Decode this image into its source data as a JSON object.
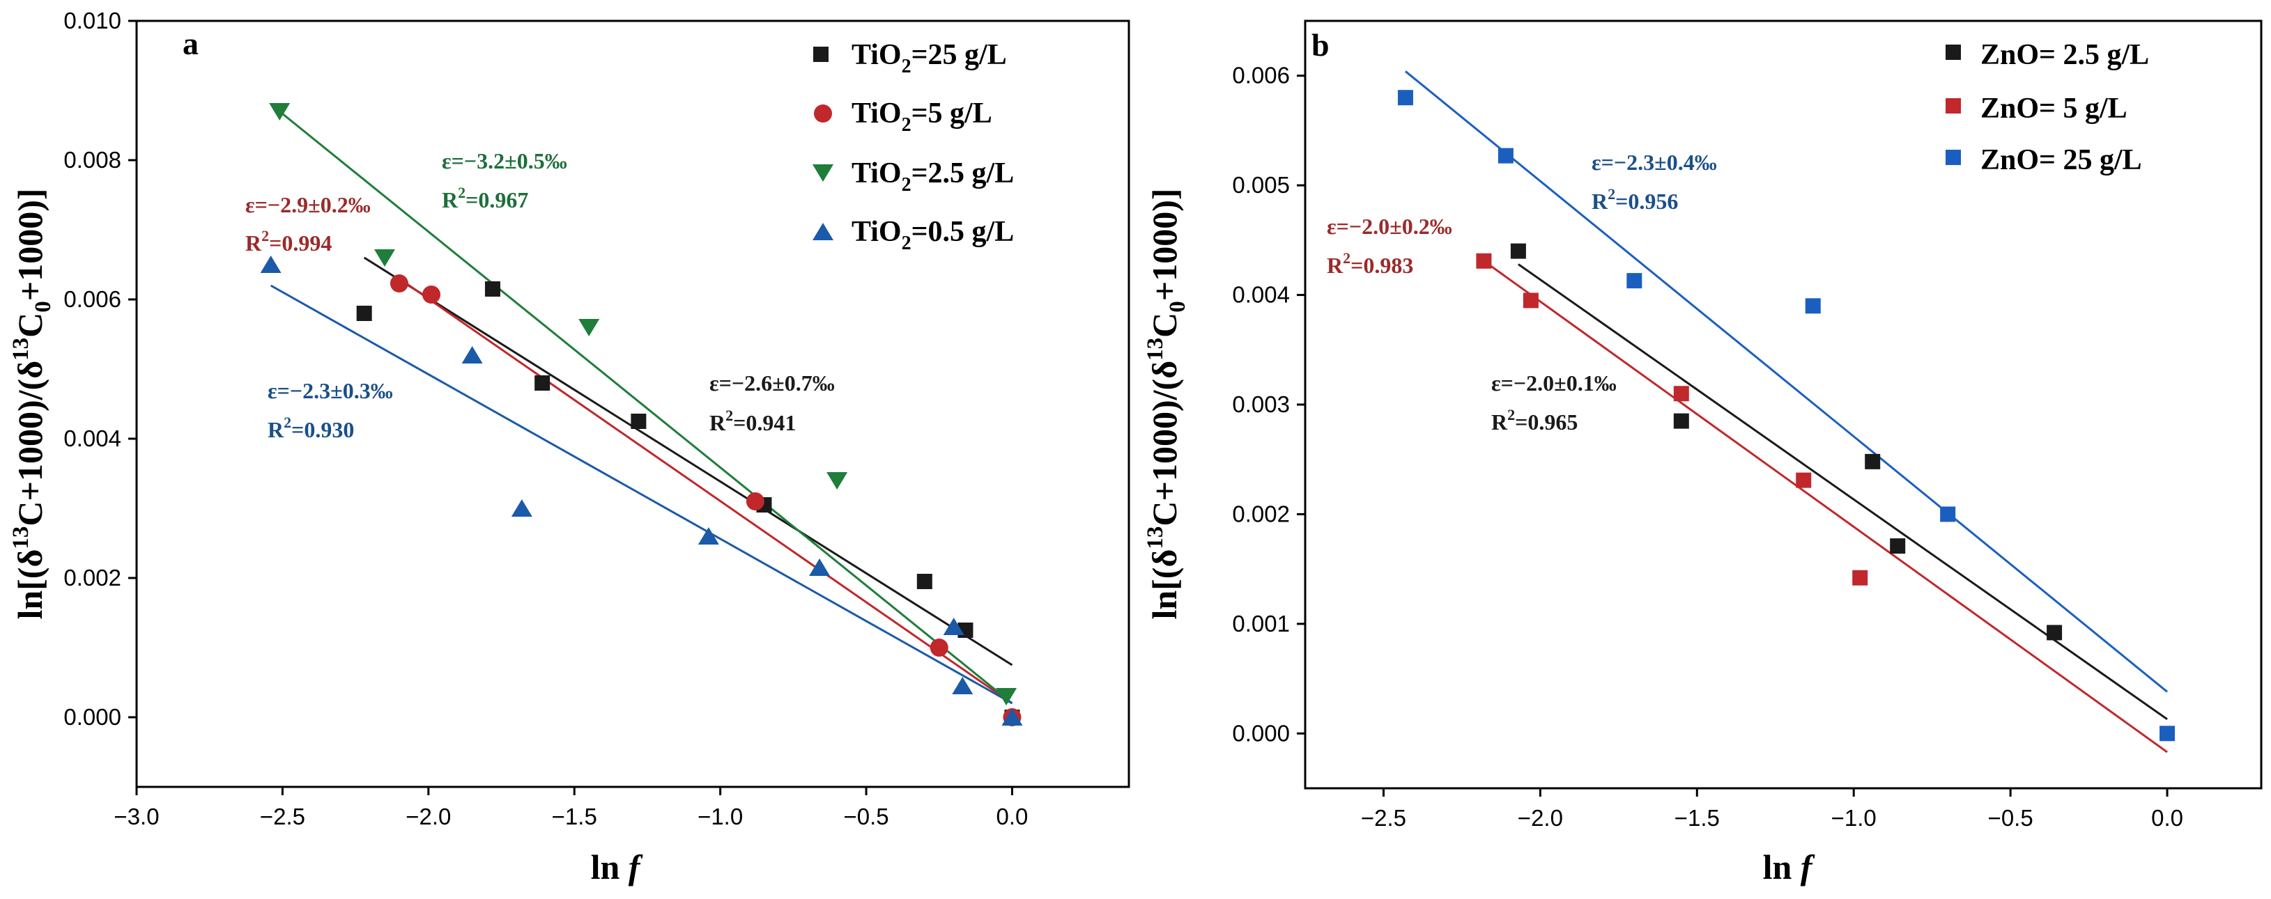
{
  "chart_data": [
    {
      "type": "scatter",
      "panel_label": "a",
      "xlabel": "ln f",
      "xlabel_main": "ln",
      "xlabel_italic": "f",
      "ylabel": "ln[(δ13C+1000)/(δ13C0+1000)]",
      "xlim": [
        -3.0,
        0.4
      ],
      "ylim": [
        -0.001,
        0.01
      ],
      "x_ticks": [
        -3.0,
        -2.5,
        -2.0,
        -1.5,
        -1.0,
        -0.5,
        0.0
      ],
      "x_tick_labels": [
        "−3.0",
        "−2.5",
        "−2.0",
        "−1.5",
        "−1.0",
        "−0.5",
        "0.0"
      ],
      "y_ticks": [
        0.0,
        0.002,
        0.004,
        0.006,
        0.008,
        0.01
      ],
      "y_tick_labels": [
        "0.000",
        "0.002",
        "0.004",
        "0.006",
        "0.008",
        "0.010"
      ],
      "series": [
        {
          "name": "TiO2=25 g/L",
          "legend_base": "TiO",
          "legend_sub": "2",
          "legend_rest": "=25 g/L",
          "marker": "square",
          "color": "#1a1a1a",
          "x": [
            -2.22,
            -1.78,
            -1.61,
            -1.28,
            -0.85,
            -0.3,
            -0.16,
            0.0
          ],
          "y": [
            0.0058,
            0.00615,
            0.0048,
            0.00425,
            0.00305,
            0.00195,
            0.00125,
            0.0
          ],
          "fit": {
            "x": [
              -2.22,
              0.0
            ],
            "y": [
              0.0066,
              0.00075
            ]
          }
        },
        {
          "name": "TiO2=5 g/L",
          "legend_base": "TiO",
          "legend_sub": "2",
          "legend_rest": "=5 g/L",
          "marker": "circle",
          "color": "#c0282b",
          "x": [
            -2.1,
            -1.99,
            -0.88,
            -0.25,
            0.0
          ],
          "y": [
            0.00623,
            0.00607,
            0.0031,
            0.001,
            0.0
          ],
          "fit": {
            "x": [
              -2.1,
              0.0
            ],
            "y": [
              0.0063,
              0.0002
            ]
          }
        },
        {
          "name": "TiO2=2.5 g/L",
          "legend_base": "TiO",
          "legend_sub": "2",
          "legend_rest": "=2.5 g/L",
          "marker": "triangle-down",
          "color": "#1e7e3a",
          "x": [
            -2.51,
            -2.15,
            -1.45,
            -0.6,
            -0.02
          ],
          "y": [
            0.0087,
            0.0066,
            0.0056,
            0.0034,
            0.0003
          ],
          "fit": {
            "x": [
              -2.51,
              0.0
            ],
            "y": [
              0.0087,
              0.0002
            ]
          }
        },
        {
          "name": "TiO2=0.5 g/L",
          "legend_base": "TiO",
          "legend_sub": "2",
          "legend_rest": "=0.5 g/L",
          "marker": "triangle-up",
          "color": "#1a5aa8",
          "x": [
            -2.54,
            -1.85,
            -1.68,
            -1.04,
            -0.66,
            -0.2,
            -0.17,
            0.0
          ],
          "y": [
            0.0065,
            0.0052,
            0.003,
            0.0026,
            0.00215,
            0.0013,
            0.00045,
            0.0
          ],
          "fit": {
            "x": [
              -2.54,
              0.0
            ],
            "y": [
              0.0062,
              0.0002
            ]
          }
        }
      ],
      "annotations": [
        {
          "eps": "ε=−2.9±0.2‰",
          "r2_base": "R",
          "r2_sup": "2",
          "r2_val": "=0.994",
          "color": "#9b2a2a"
        },
        {
          "eps": "ε=−3.2±0.5‰",
          "r2_base": "R",
          "r2_sup": "2",
          "r2_val": "=0.967",
          "color": "#1e6e3a"
        },
        {
          "eps": "ε=−2.3±0.3‰",
          "r2_base": "R",
          "r2_sup": "2",
          "r2_val": "=0.930",
          "color": "#1a4f8a"
        },
        {
          "eps": "ε=−2.6±0.7‰",
          "r2_base": "R",
          "r2_sup": "2",
          "r2_val": "=0.941",
          "color": "#1a1a1a"
        }
      ]
    },
    {
      "type": "scatter",
      "panel_label": "b",
      "xlabel": "ln f",
      "xlabel_main": "ln",
      "xlabel_italic": "f",
      "ylabel": "ln[(δ13C+1000)/(δ13C0+1000)]",
      "xlim": [
        -2.75,
        0.3
      ],
      "ylim": [
        -0.0005,
        0.0065
      ],
      "x_ticks": [
        -2.5,
        -2.0,
        -1.5,
        -1.0,
        -0.5,
        0.0
      ],
      "x_tick_labels": [
        "−2.5",
        "−2.0",
        "−1.5",
        "−1.0",
        "−0.5",
        "0.0"
      ],
      "y_ticks": [
        0.0,
        0.001,
        0.002,
        0.003,
        0.004,
        0.005,
        0.006
      ],
      "y_tick_labels": [
        "0.000",
        "0.001",
        "0.002",
        "0.003",
        "0.004",
        "0.005",
        "0.006"
      ],
      "series": [
        {
          "name": "ZnO= 2.5 g/L",
          "legend_base": "ZnO= 2.5 g/L",
          "legend_sub": "",
          "legend_rest": "",
          "marker": "square",
          "color": "#1a1a1a",
          "x": [
            -2.07,
            -1.55,
            -0.94,
            -0.86,
            -0.36
          ],
          "y": [
            0.0044,
            0.00285,
            0.00248,
            0.00171,
            0.00092
          ],
          "fit": {
            "x": [
              -2.07,
              0.0
            ],
            "y": [
              0.00428,
              0.00013
            ]
          }
        },
        {
          "name": "ZnO= 5 g/L",
          "legend_base": "ZnO= 5 g/L",
          "legend_sub": "",
          "legend_rest": "",
          "marker": "square",
          "color": "#c0282b",
          "x": [
            -2.18,
            -2.03,
            -1.55,
            -1.16,
            -0.98
          ],
          "y": [
            0.00431,
            0.00395,
            0.0031,
            0.00231,
            0.00142
          ],
          "fit": {
            "x": [
              -2.18,
              0.0
            ],
            "y": [
              0.00431,
              -0.00017
            ]
          }
        },
        {
          "name": "ZnO= 25 g/L",
          "legend_base": "ZnO= 25 g/L",
          "legend_sub": "",
          "legend_rest": "",
          "marker": "square",
          "color": "#1a5fc0",
          "x": [
            -2.43,
            -2.11,
            -1.7,
            -1.13,
            -0.7,
            0.0
          ],
          "y": [
            0.0058,
            0.00527,
            0.00413,
            0.0039,
            0.002,
            0.0
          ],
          "fit": {
            "x": [
              -2.43,
              0.0
            ],
            "y": [
              0.00604,
              0.00038
            ]
          }
        }
      ],
      "annotations": [
        {
          "eps": "ε=−2.3±0.4‰",
          "r2_base": "R",
          "r2_sup": "2",
          "r2_val": "=0.956",
          "color": "#1a4f8a"
        },
        {
          "eps": "ε=−2.0±0.2‰",
          "r2_base": "R",
          "r2_sup": "2",
          "r2_val": "=0.983",
          "color": "#9b2a2a"
        },
        {
          "eps": "ε=−2.0±0.1‰",
          "r2_base": "R",
          "r2_sup": "2",
          "r2_val": "=0.965",
          "color": "#1a1a1a"
        }
      ]
    }
  ]
}
